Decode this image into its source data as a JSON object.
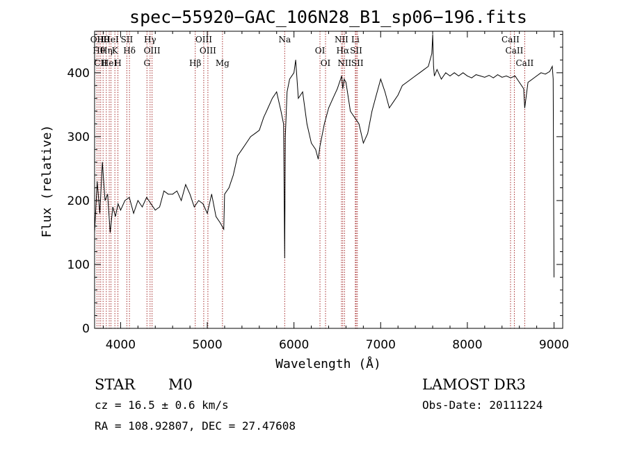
{
  "chart_data": {
    "type": "line",
    "title": "spec−55920−GAC_106N28_B1_sp06−196.fits",
    "xlabel": "Wavelength (Å)",
    "ylabel": "Flux (relative)",
    "xlim": [
      3700,
      9100
    ],
    "ylim": [
      0,
      465
    ],
    "xticks": [
      "4000",
      "5000",
      "6000",
      "7000",
      "8000",
      "9000"
    ],
    "xtick_values": [
      4000,
      5000,
      6000,
      7000,
      8000,
      9000
    ],
    "yticks": [
      "0",
      "100",
      "200",
      "300",
      "400"
    ],
    "ytick_values": [
      0,
      100,
      200,
      300,
      400
    ],
    "grid": false,
    "line_color": "#000000",
    "marker_color": "#a52a2a",
    "series": [
      {
        "x": [
          3700,
          3730,
          3760,
          3790,
          3820,
          3850,
          3880,
          3910,
          3940,
          3970,
          4000,
          4050,
          4100,
          4150,
          4200,
          4250,
          4300,
          4350,
          4400,
          4450,
          4500,
          4550,
          4600,
          4650,
          4700,
          4750,
          4800,
          4850,
          4900,
          4950,
          5000,
          5050,
          5100,
          5150,
          5190,
          5200,
          5250,
          5300,
          5350,
          5400,
          5450,
          5500,
          5550,
          5600,
          5650,
          5700,
          5750,
          5800,
          5850,
          5880,
          5893,
          5900,
          5920,
          5950,
          6000,
          6020,
          6050,
          6100,
          6150,
          6200,
          6250,
          6280,
          6300,
          6350,
          6400,
          6450,
          6500,
          6550,
          6563,
          6580,
          6600,
          6650,
          6700,
          6750,
          6800,
          6850,
          6900,
          6950,
          7000,
          7050,
          7100,
          7150,
          7200,
          7250,
          7300,
          7350,
          7400,
          7450,
          7500,
          7550,
          7590,
          7600,
          7610,
          7620,
          7650,
          7700,
          7750,
          7800,
          7850,
          7900,
          7950,
          8000,
          8050,
          8100,
          8150,
          8200,
          8250,
          8300,
          8350,
          8400,
          8450,
          8500,
          8550,
          8600,
          8650,
          8662,
          8700,
          8750,
          8800,
          8850,
          8900,
          8950,
          8980,
          8990,
          9000
        ],
        "y": [
          150,
          230,
          180,
          260,
          200,
          210,
          150,
          190,
          175,
          195,
          185,
          200,
          205,
          180,
          200,
          190,
          205,
          195,
          185,
          190,
          215,
          210,
          210,
          215,
          200,
          225,
          210,
          190,
          200,
          195,
          180,
          210,
          175,
          165,
          155,
          210,
          220,
          240,
          270,
          280,
          290,
          300,
          305,
          310,
          330,
          345,
          360,
          370,
          340,
          320,
          110,
          300,
          370,
          390,
          400,
          420,
          360,
          370,
          320,
          290,
          280,
          265,
          285,
          320,
          345,
          360,
          375,
          395,
          375,
          390,
          385,
          340,
          330,
          320,
          290,
          305,
          340,
          365,
          390,
          370,
          345,
          355,
          365,
          380,
          385,
          390,
          395,
          400,
          405,
          410,
          430,
          460,
          410,
          395,
          405,
          390,
          400,
          395,
          400,
          395,
          400,
          395,
          392,
          397,
          395,
          393,
          396,
          392,
          397,
          393,
          395,
          392,
          395,
          385,
          375,
          345,
          385,
          390,
          395,
          400,
          398,
          402,
          410,
          390,
          80
        ]
      }
    ],
    "line_markers": [
      {
        "lambda": 3727,
        "label": "OII"
      },
      {
        "lambda": 3750,
        "label": "Hθ"
      },
      {
        "lambda": 3770,
        "label": "CII"
      },
      {
        "lambda": 3798,
        "label": "Hθ"
      },
      {
        "lambda": 3835,
        "label": "Hη"
      },
      {
        "lambda": 3869,
        "label": "HeI"
      },
      {
        "lambda": 3889,
        "label": "HeI"
      },
      {
        "lambda": 3934,
        "label": "K"
      },
      {
        "lambda": 3969,
        "label": "H"
      },
      {
        "lambda": 4072,
        "label": "SII"
      },
      {
        "lambda": 4102,
        "label": "Hδ"
      },
      {
        "lambda": 4304,
        "label": "G"
      },
      {
        "lambda": 4340,
        "label": "Hγ"
      },
      {
        "lambda": 4363,
        "label": "OIII"
      },
      {
        "lambda": 4861,
        "label": "Hβ"
      },
      {
        "lambda": 4959,
        "label": "OIII"
      },
      {
        "lambda": 5007,
        "label": "OIII"
      },
      {
        "lambda": 5175,
        "label": "Mg"
      },
      {
        "lambda": 5893,
        "label": "Na"
      },
      {
        "lambda": 6300,
        "label": "OI"
      },
      {
        "lambda": 6364,
        "label": "OI"
      },
      {
        "lambda": 6548,
        "label": "NII"
      },
      {
        "lambda": 6563,
        "label": "Hα"
      },
      {
        "lambda": 6583,
        "label": "NII"
      },
      {
        "lambda": 6708,
        "label": "Li"
      },
      {
        "lambda": 6717,
        "label": "SII"
      },
      {
        "lambda": 6731,
        "label": "SII"
      },
      {
        "lambda": 8498,
        "label": "CaII"
      },
      {
        "lambda": 8542,
        "label": "CaII"
      },
      {
        "lambda": 8662,
        "label": "CaII"
      }
    ]
  },
  "footer": {
    "class_label": "STAR",
    "subclass": "M0",
    "survey": "LAMOST DR3",
    "cz": "cz = 16.5 ± 0.6 km/s",
    "obs_date": "Obs-Date: 20111224",
    "coords": "RA = 108.92807, DEC =  27.47608"
  }
}
